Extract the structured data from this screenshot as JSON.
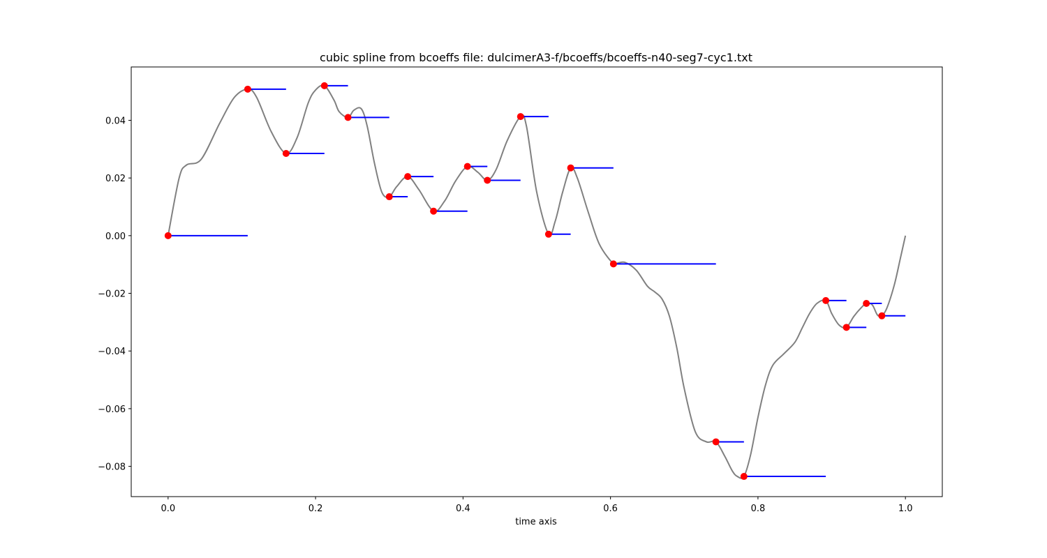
{
  "chart_data": {
    "type": "line",
    "title": "cubic spline from bcoeffs file: dulcimerA3-f/bcoeffs/bcoeffs-n40-seg7-cyc1.txt",
    "xlabel": "time axis",
    "ylabel": "",
    "xlim": [
      -0.05,
      1.05
    ],
    "ylim": [
      -0.0905,
      0.0585
    ],
    "xticks": [
      0.0,
      0.2,
      0.4,
      0.6,
      0.8,
      1.0
    ],
    "xtick_labels": [
      "0.0",
      "0.2",
      "0.4",
      "0.6",
      "0.8",
      "1.0"
    ],
    "yticks": [
      0.04,
      0.02,
      0.0,
      -0.02,
      -0.04,
      -0.06,
      -0.08
    ],
    "ytick_labels": [
      "0.04",
      "0.02",
      "0.00",
      "−0.02",
      "−0.04",
      "−0.06",
      "−0.08"
    ],
    "grid": false,
    "colors": {
      "curve": "#808080",
      "knots": "#ff0000",
      "segments": "#0000ff"
    },
    "curve": {
      "x": [
        0.0,
        0.015,
        0.025,
        0.045,
        0.07,
        0.09,
        0.108,
        0.12,
        0.14,
        0.16,
        0.175,
        0.19,
        0.2,
        0.212,
        0.225,
        0.232,
        0.244,
        0.252,
        0.262,
        0.27,
        0.28,
        0.29,
        0.3,
        0.31,
        0.325,
        0.34,
        0.36,
        0.375,
        0.39,
        0.406,
        0.42,
        0.433,
        0.445,
        0.46,
        0.478,
        0.486,
        0.5,
        0.516,
        0.525,
        0.535,
        0.546,
        0.555,
        0.57,
        0.585,
        0.604,
        0.61,
        0.62,
        0.635,
        0.65,
        0.66,
        0.67,
        0.68,
        0.69,
        0.7,
        0.715,
        0.73,
        0.743,
        0.755,
        0.765,
        0.772,
        0.781,
        0.79,
        0.8,
        0.81,
        0.82,
        0.835,
        0.85,
        0.86,
        0.87,
        0.88,
        0.892,
        0.9,
        0.91,
        0.92,
        0.93,
        0.94,
        0.947,
        0.955,
        0.962,
        0.968,
        0.975,
        0.985,
        0.993,
        1.0
      ],
      "y": [
        0.0,
        0.02,
        0.0245,
        0.0265,
        0.039,
        0.048,
        0.0508,
        0.048,
        0.036,
        0.0285,
        0.034,
        0.046,
        0.0505,
        0.052,
        0.047,
        0.043,
        0.041,
        0.0435,
        0.044,
        0.038,
        0.025,
        0.015,
        0.0135,
        0.017,
        0.0205,
        0.016,
        0.0085,
        0.012,
        0.019,
        0.024,
        0.022,
        0.0192,
        0.023,
        0.033,
        0.0413,
        0.038,
        0.015,
        0.0005,
        0.005,
        0.015,
        0.0235,
        0.02,
        0.008,
        -0.003,
        -0.0098,
        -0.0095,
        -0.0093,
        -0.012,
        -0.0175,
        -0.0195,
        -0.022,
        -0.028,
        -0.039,
        -0.053,
        -0.068,
        -0.0715,
        -0.0715,
        -0.0765,
        -0.0815,
        -0.0835,
        -0.0835,
        -0.076,
        -0.063,
        -0.052,
        -0.045,
        -0.041,
        -0.037,
        -0.032,
        -0.027,
        -0.0235,
        -0.0225,
        -0.027,
        -0.031,
        -0.0318,
        -0.028,
        -0.025,
        -0.0235,
        -0.024,
        -0.0275,
        -0.0278,
        -0.025,
        -0.017,
        -0.008,
        0.0
      ]
    },
    "knots": {
      "x": [
        0.0,
        0.108,
        0.16,
        0.212,
        0.244,
        0.3,
        0.325,
        0.36,
        0.406,
        0.433,
        0.478,
        0.516,
        0.546,
        0.604,
        0.743,
        0.781,
        0.892,
        0.92,
        0.947,
        0.968
      ],
      "y": [
        0.0,
        0.0508,
        0.0285,
        0.052,
        0.041,
        0.0135,
        0.0205,
        0.0085,
        0.024,
        0.0192,
        0.0413,
        0.0005,
        0.0235,
        -0.0098,
        -0.0715,
        -0.0835,
        -0.0225,
        -0.0318,
        -0.0235,
        -0.0278
      ]
    },
    "segments": [
      {
        "x0": 0.0,
        "x1": 0.108,
        "y": 0.0
      },
      {
        "x0": 0.108,
        "x1": 0.16,
        "y": 0.0508
      },
      {
        "x0": 0.16,
        "x1": 0.212,
        "y": 0.0285
      },
      {
        "x0": 0.212,
        "x1": 0.244,
        "y": 0.052
      },
      {
        "x0": 0.244,
        "x1": 0.3,
        "y": 0.041
      },
      {
        "x0": 0.3,
        "x1": 0.325,
        "y": 0.0135
      },
      {
        "x0": 0.325,
        "x1": 0.36,
        "y": 0.0205
      },
      {
        "x0": 0.36,
        "x1": 0.406,
        "y": 0.0085
      },
      {
        "x0": 0.406,
        "x1": 0.433,
        "y": 0.024
      },
      {
        "x0": 0.433,
        "x1": 0.478,
        "y": 0.0192
      },
      {
        "x0": 0.478,
        "x1": 0.516,
        "y": 0.0413
      },
      {
        "x0": 0.516,
        "x1": 0.546,
        "y": 0.0005
      },
      {
        "x0": 0.546,
        "x1": 0.604,
        "y": 0.0235
      },
      {
        "x0": 0.604,
        "x1": 0.743,
        "y": -0.0098
      },
      {
        "x0": 0.743,
        "x1": 0.781,
        "y": -0.0715
      },
      {
        "x0": 0.781,
        "x1": 0.892,
        "y": -0.0835
      },
      {
        "x0": 0.892,
        "x1": 0.92,
        "y": -0.0225
      },
      {
        "x0": 0.92,
        "x1": 0.947,
        "y": -0.0318
      },
      {
        "x0": 0.947,
        "x1": 0.968,
        "y": -0.0235
      },
      {
        "x0": 0.968,
        "x1": 1.0,
        "y": -0.0278
      }
    ]
  }
}
